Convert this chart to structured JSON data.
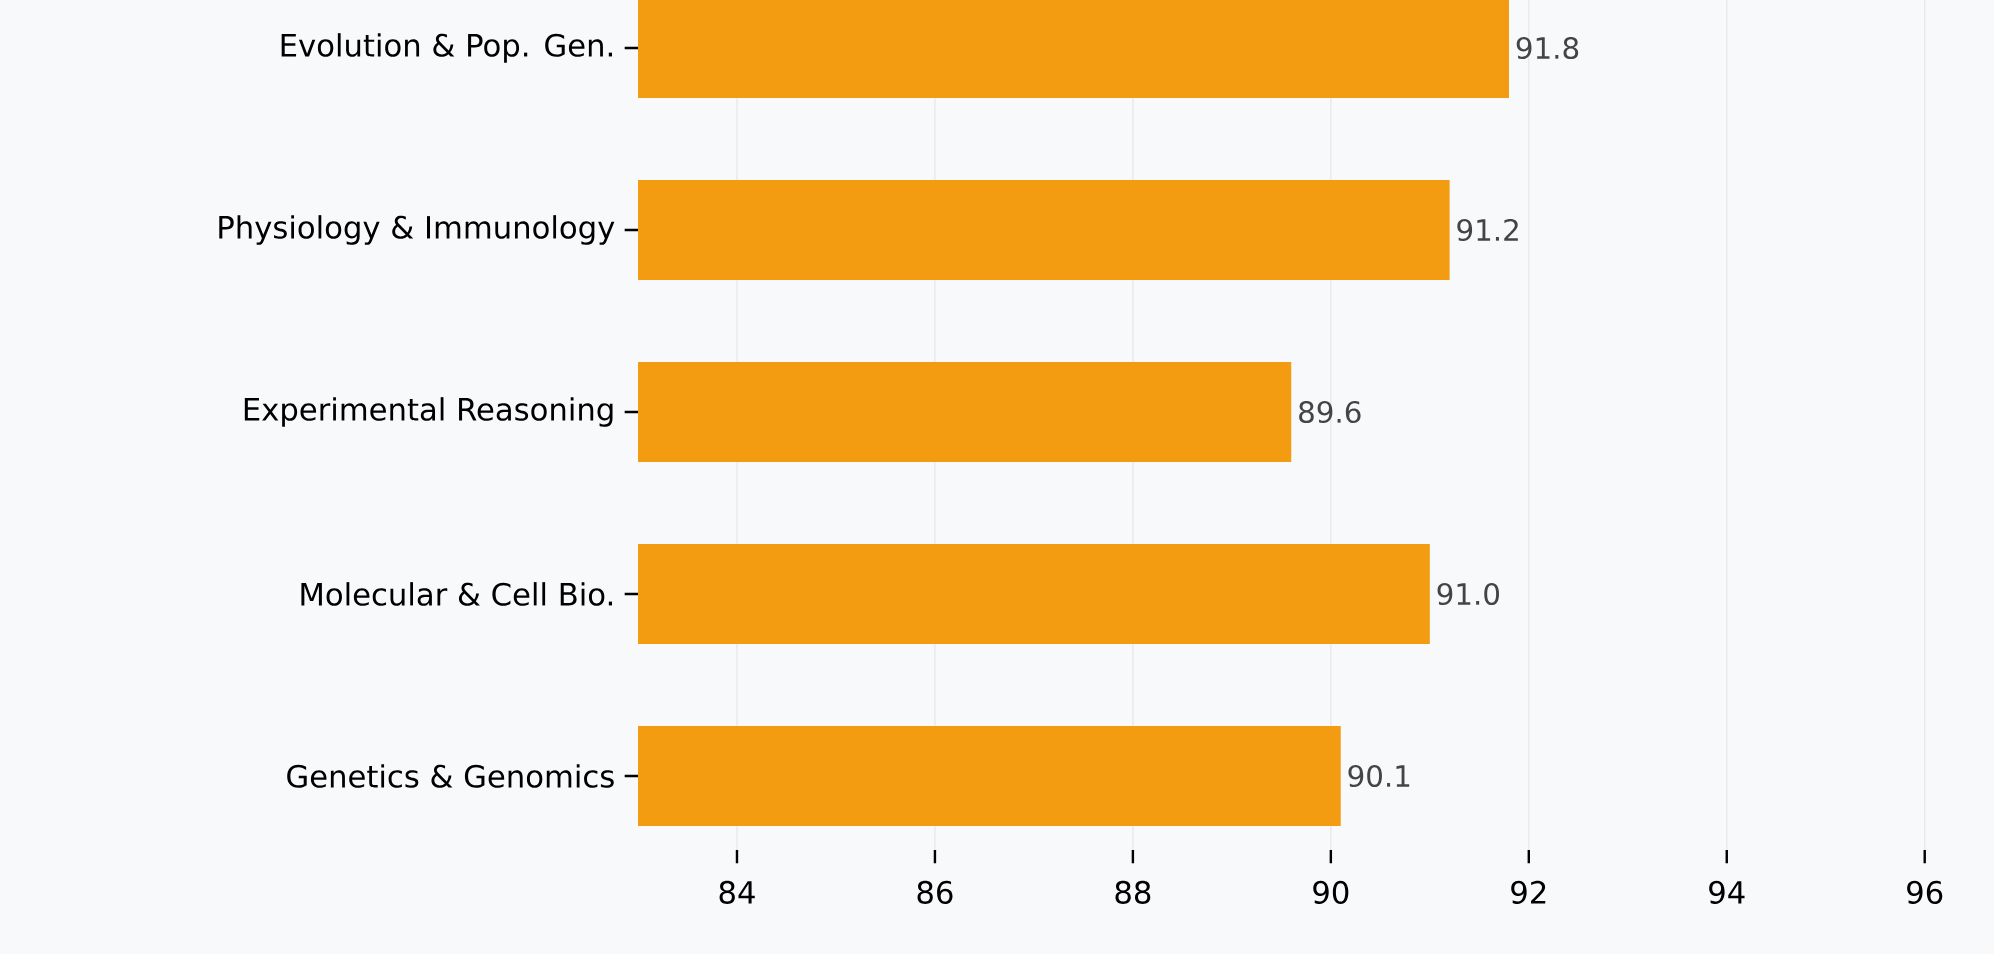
{
  "chart_data": {
    "type": "bar",
    "orientation": "horizontal",
    "categories": [
      "Evolution & Pop. Gen.",
      "Physiology & Immunology",
      "Experimental Reasoning",
      "Molecular & Cell Bio.",
      "Genetics & Genomics"
    ],
    "values": [
      91.8,
      91.2,
      89.6,
      91.0,
      90.1
    ],
    "color": "#f39c12",
    "xlim": [
      83,
      96.7
    ],
    "xticks": [
      84,
      86,
      88,
      90,
      92,
      94,
      96
    ],
    "value_labels": [
      "91.8",
      "91.2",
      "89.6",
      "91.0",
      "90.1"
    ],
    "grid": "x"
  }
}
